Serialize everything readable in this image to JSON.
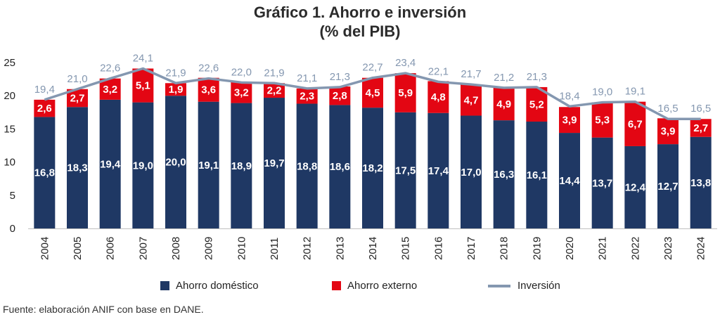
{
  "title": {
    "line1": "Gráfico 1. Ahorro e inversión",
    "line2": "(% del PIB)"
  },
  "colors": {
    "domestic": "#1f3864",
    "external": "#e30613",
    "investment": "#8497b0",
    "axis": "#bfbfbf"
  },
  "legend": {
    "domestic": "Ahorro doméstico",
    "external": "Ahorro externo",
    "investment": "Inversión"
  },
  "source": "Fuente: elaboración ANIF con base en DANE.",
  "chart_data": {
    "type": "bar",
    "stacked": true,
    "categories": [
      "2004",
      "2005",
      "2006",
      "2007",
      "2008",
      "2009",
      "2010",
      "2011",
      "2012",
      "2013",
      "2014",
      "2015",
      "2016",
      "2017",
      "2018",
      "2019",
      "2020",
      "2021",
      "2022",
      "2023",
      "2024"
    ],
    "series": [
      {
        "name": "Ahorro doméstico",
        "type": "bar",
        "values": [
          16.8,
          18.3,
          19.4,
          19.0,
          20.0,
          19.1,
          18.9,
          19.7,
          18.8,
          18.6,
          18.2,
          17.5,
          17.4,
          17.0,
          16.3,
          16.1,
          14.4,
          13.7,
          12.4,
          12.7,
          13.8
        ],
        "labels": [
          "16,8",
          "18,3",
          "19,4",
          "19,0",
          "20,0",
          "19,1",
          "18,9",
          "19,7",
          "18,8",
          "18,6",
          "18,2",
          "17,5",
          "17,4",
          "17,0",
          "16,3",
          "16,1",
          "14,4",
          "13,7",
          "12,4",
          "12,7",
          "13,8"
        ]
      },
      {
        "name": "Ahorro externo",
        "type": "bar",
        "values": [
          2.6,
          2.7,
          3.2,
          5.1,
          1.9,
          3.6,
          3.2,
          2.2,
          2.3,
          2.8,
          4.5,
          5.9,
          4.8,
          4.7,
          4.9,
          5.2,
          3.9,
          5.3,
          6.7,
          3.9,
          2.7
        ],
        "labels": [
          "2,6",
          "2,7",
          "3,2",
          "5,1",
          "1,9",
          "3,6",
          "3,2",
          "2,2",
          "2,3",
          "2,8",
          "4,5",
          "5,9",
          "4,8",
          "4,7",
          "4,9",
          "5,2",
          "3,9",
          "5,3",
          "6,7",
          "3,9",
          "2,7"
        ]
      },
      {
        "name": "Inversión",
        "type": "line",
        "values": [
          19.4,
          21.0,
          22.6,
          24.1,
          21.9,
          22.6,
          22.0,
          21.9,
          21.1,
          21.3,
          22.7,
          23.4,
          22.1,
          21.7,
          21.2,
          21.3,
          18.4,
          19.0,
          19.1,
          16.5,
          16.5
        ],
        "labels": [
          "19,4",
          "21,0",
          "22,6",
          "24,1",
          "21,9",
          "22,6",
          "22,0",
          "21,9",
          "21,1",
          "21,3",
          "22,7",
          "23,4",
          "22,1",
          "21,7",
          "21,2",
          "21,3",
          "18,4",
          "19,0",
          "19,1",
          "16,5",
          "16,5"
        ]
      }
    ],
    "ylim": [
      0,
      25
    ],
    "yticks": [
      "0",
      "5",
      "10",
      "15",
      "20",
      "25"
    ],
    "grid": false,
    "legend_position": "bottom"
  }
}
